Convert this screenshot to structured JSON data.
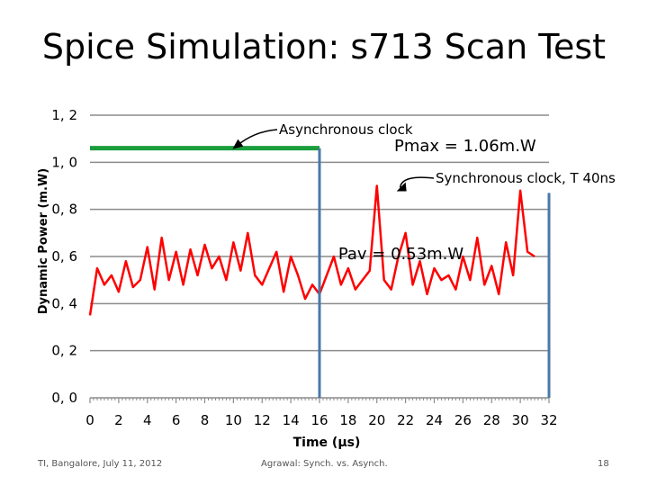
{
  "slide": {
    "title": "Spice Simulation: s713 Scan Test",
    "footer_left": "TI, Bangalore, July 11, 2012",
    "footer_center": "Agrawal: Synch. vs. Asynch.",
    "page_number": "18"
  },
  "chart_data": {
    "type": "line",
    "title": "Spice Simulation: s713 Scan Test",
    "xlabel": "Time (µs)",
    "ylabel": "Dynamic Power (m.W)",
    "xlim": [
      0,
      32
    ],
    "ylim": [
      0.0,
      1.2
    ],
    "x_ticks": [
      "0",
      "2",
      "4",
      "6",
      "8",
      "10",
      "12",
      "14",
      "16",
      "18",
      "20",
      "22",
      "24",
      "26",
      "28",
      "30",
      "32"
    ],
    "y_ticks": [
      "0, 0",
      "0, 2",
      "0, 4",
      "0, 6",
      "0, 8",
      "1, 0",
      "1, 2"
    ],
    "grid": true,
    "series": [
      {
        "label": "Asynchronous clock",
        "color": "#1a9e3c",
        "x": [
          0,
          16
        ],
        "y": [
          1.06,
          1.06
        ]
      },
      {
        "label": "Synchronous clock, T 40ns",
        "color": "#ff0000",
        "x": [
          0,
          0.5,
          1,
          1.5,
          2,
          2.5,
          3,
          3.5,
          4,
          4.5,
          5,
          5.5,
          6,
          6.5,
          7,
          7.5,
          8,
          8.5,
          9,
          9.5,
          10,
          10.5,
          11,
          11.5,
          12,
          12.5,
          13,
          13.5,
          14,
          14.5,
          15,
          15.5,
          16,
          16.5,
          17,
          17.5,
          18,
          18.5,
          19,
          19.5,
          20,
          20.5,
          21,
          21.5,
          22,
          22.5,
          23,
          23.5,
          24,
          24.5,
          25,
          25.5,
          26,
          26.5,
          27,
          27.5,
          28,
          28.5,
          29,
          29.5,
          30,
          30.5,
          31
        ],
        "y": [
          0.35,
          0.55,
          0.48,
          0.52,
          0.45,
          0.58,
          0.47,
          0.5,
          0.64,
          0.46,
          0.68,
          0.5,
          0.62,
          0.48,
          0.63,
          0.52,
          0.65,
          0.55,
          0.6,
          0.5,
          0.66,
          0.54,
          0.7,
          0.52,
          0.48,
          0.55,
          0.62,
          0.45,
          0.6,
          0.52,
          0.42,
          0.48,
          0.44,
          0.52,
          0.6,
          0.48,
          0.55,
          0.46,
          0.5,
          0.54,
          0.9,
          0.5,
          0.46,
          0.6,
          0.7,
          0.48,
          0.58,
          0.44,
          0.55,
          0.5,
          0.52,
          0.46,
          0.6,
          0.5,
          0.68,
          0.48,
          0.56,
          0.44,
          0.66,
          0.52,
          0.88,
          0.62,
          0.6
        ]
      }
    ],
    "markers": [
      {
        "type": "vline",
        "x": 16,
        "y_end": 1.06,
        "color": "#4a78a8"
      },
      {
        "type": "vline",
        "x": 32,
        "y_end": 0.87,
        "color": "#4a78a8"
      }
    ],
    "annotations": [
      {
        "text": "Asynchronous clock",
        "target_x": 10,
        "target_y": 1.06
      },
      {
        "text": "Pmax = 1.06m.W"
      },
      {
        "text": "Synchronous clock, T 40ns",
        "target_x": 21.5,
        "target_y": 0.9
      },
      {
        "text": "Pav = 0.53m.W",
        "x": 19,
        "y": 0.6
      }
    ]
  }
}
